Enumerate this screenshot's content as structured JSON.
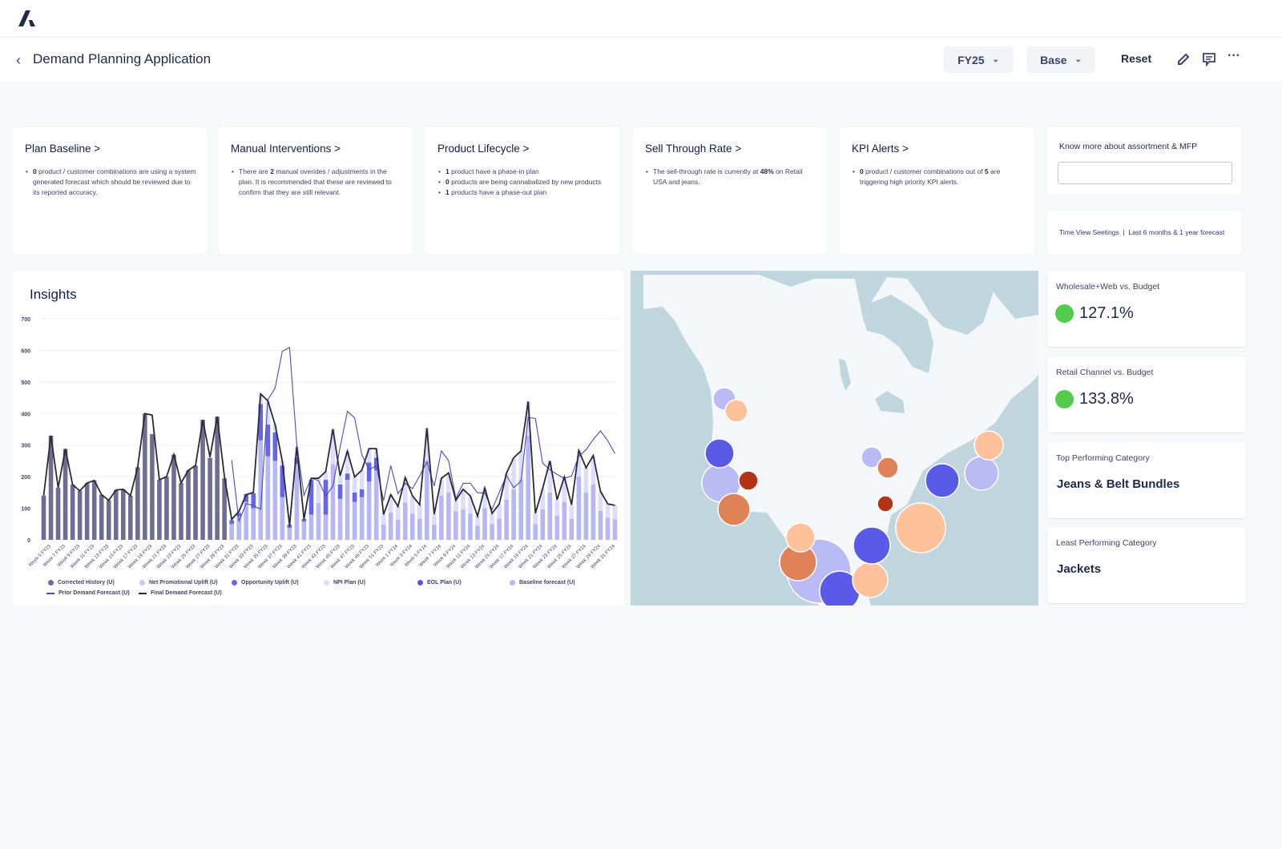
{
  "app": {
    "logo": "A",
    "title": "Demand Planning Application"
  },
  "toolbar": {
    "year": "FY25",
    "scenario": "Base",
    "reset": "Reset"
  },
  "cards": [
    {
      "title": "Plan Baseline >",
      "items": [
        {
          "b": "0",
          "t": " product / customer combinations are using a system generated forecast which should be reviewed due to its reported accuracy."
        }
      ]
    },
    {
      "title": "Manual Interventions >",
      "items": [
        {
          "pre": "There are ",
          "b": "2",
          "t": " manual overides / adjustments in the plan. It is recommended that these are reviewed to confirm that they are still relevant."
        }
      ]
    },
    {
      "title": "Product Lifecycle >",
      "items": [
        {
          "b": "1",
          "t": "  product  have a phase-in plan"
        },
        {
          "b": "0",
          "t": " products are being cannabalized by new products"
        },
        {
          "b": "1",
          "t": "  products have a phase-out plan"
        }
      ]
    },
    {
      "title": "Sell Through Rate >",
      "items": [
        {
          "pre": "The sell-through rate is currently at ",
          "b": "48%",
          "t": " on Retail USA and jeans."
        }
      ]
    },
    {
      "title": "KPI Alerts >",
      "items": [
        {
          "b": "0",
          "t": " product / customer combinations out of ",
          "b2": "5",
          "t2": " are triggering high priority KPI alerts."
        }
      ]
    }
  ],
  "assistant": {
    "label": "Know more about assortment & MFP",
    "placeholder": ""
  },
  "timeview": {
    "label": "Time View Seetings",
    "sep": "|",
    "value": "Last 6 months & 1 year forecast"
  },
  "kpis": [
    {
      "label": "Wholesale+Web vs. Budget",
      "value": "127.1%",
      "status_color": "#52cc4b"
    },
    {
      "label": "Retail Channel vs. Budget",
      "value": "133.8%",
      "status_color": "#52cc4b"
    },
    {
      "label": "Top Performing Category",
      "value": "Jeans & Belt Bundles"
    },
    {
      "label": "Least Performing Category",
      "value": "Jackets"
    }
  ],
  "insights": {
    "title": "Insights"
  },
  "chart_data": {
    "type": "bar",
    "stacked": true,
    "ylim": [
      0,
      700
    ],
    "yticks": [
      0,
      100,
      200,
      300,
      400,
      500,
      600,
      700
    ],
    "grid": true,
    "legend_placement": "bottom",
    "x_start": {
      "week": 4,
      "fy": "FY23"
    },
    "xticklabels": [
      "Week 5 FY23",
      "Week 7 FY23",
      "Week 9 FY23",
      "Week 11 FY23",
      "Week 13 FY23",
      "Week 15 FY23",
      "Week 17 FY23",
      "Week 19 FY23",
      "Week 21 FY23",
      "Week 23 FY23",
      "Week 25 FY23",
      "Week 27 FY23",
      "Week 29 FY23",
      "Week 31 FY23",
      "Week 33 FY23",
      "Week 35 FY23",
      "Week 37 FY23",
      "Week 39 FY23",
      "Week 41 FY23",
      "Week 43 FY23",
      "Week 45 FY23",
      "Week 47 FY23",
      "Week 49 FY23",
      "Week 51 FY23",
      "Week 1 FY24",
      "Week 3 FY24",
      "Week 5 FY24",
      "Week 7 FY24",
      "Week 9 FY24",
      "Week 11 FY24",
      "Week 13 FY24",
      "Week 15 FY24",
      "Week 17 FY24",
      "Week 19 FY24",
      "Week 21 FY24",
      "Week 23 FY24",
      "Week 25 FY24",
      "Week 27 FY24",
      "Week 29 FY24",
      "Week 31 FY24"
    ],
    "series": [
      {
        "name": "Corrected History (U)",
        "kind": "bar",
        "color": "#6e6e94",
        "values": [
          140,
          330,
          165,
          288,
          175,
          155,
          180,
          188,
          143,
          125,
          158,
          160,
          140,
          230,
          400,
          335,
          190,
          200,
          270,
          180,
          220,
          235,
          380,
          260,
          390,
          195,
          null,
          null,
          null,
          null,
          null,
          null,
          null,
          null,
          null,
          null,
          null,
          null,
          null,
          null,
          null,
          null,
          null,
          null,
          null,
          null,
          null,
          null,
          null,
          null,
          null,
          null,
          null,
          null,
          null,
          null,
          null,
          null,
          null,
          null,
          null,
          null,
          null,
          null,
          null,
          null,
          null,
          null,
          null,
          null,
          null,
          null,
          null,
          null,
          null,
          null,
          null,
          null,
          null,
          null
        ]
      },
      {
        "name": "Net Promotional Uplift (U)",
        "kind": "bar",
        "color": "#c6c6f7",
        "values": []
      },
      {
        "name": "Opportunity Uplift (U)",
        "kind": "bar",
        "color": "#6565ea",
        "values": [
          null,
          null,
          null,
          null,
          null,
          null,
          null,
          null,
          null,
          null,
          null,
          null,
          null,
          null,
          null,
          null,
          null,
          null,
          null,
          null,
          null,
          null,
          null,
          null,
          null,
          null,
          12,
          10,
          25,
          48,
          115,
          100,
          90,
          100,
          10,
          20,
          8,
          110,
          0,
          110,
          0,
          45,
          20,
          30,
          25,
          60,
          40,
          0,
          0,
          0,
          0,
          0,
          0,
          0,
          0,
          0,
          0,
          0,
          0,
          0,
          0,
          0,
          0,
          0,
          0,
          0,
          0,
          0,
          0,
          0,
          0,
          0,
          0,
          0,
          0,
          0,
          0,
          0,
          0,
          0
        ]
      },
      {
        "name": "NPI Plan (U)",
        "kind": "bar",
        "color": "#dcdcfb",
        "values": [
          null,
          null,
          null,
          null,
          null,
          null,
          null,
          null,
          null,
          null,
          null,
          null,
          null,
          null,
          null,
          null,
          null,
          null,
          null,
          null,
          null,
          null,
          null,
          null,
          null,
          null,
          3,
          5,
          0,
          2,
          32,
          75,
          25,
          15,
          0,
          35,
          0,
          5,
          78,
          26,
          111,
          28,
          71,
          49,
          61,
          44,
          29,
          32,
          57,
          42,
          79,
          56,
          44,
          104,
          32,
          55,
          62,
          35,
          64,
          56,
          30,
          64,
          34,
          45,
          84,
          100,
          91,
          108,
          34,
          65,
          100,
          51,
          79,
          44,
          83,
          78,
          92,
          62,
          44,
          44
        ]
      },
      {
        "name": "EOL Plan (U)",
        "kind": "bar",
        "color": "#5555e6",
        "values": []
      },
      {
        "name": "Baseline forecast (U)",
        "kind": "bar",
        "color": "#b7b7f5",
        "values": [
          null,
          null,
          null,
          null,
          null,
          null,
          null,
          null,
          null,
          null,
          null,
          null,
          null,
          null,
          null,
          null,
          null,
          null,
          null,
          null,
          null,
          null,
          null,
          null,
          null,
          null,
          50,
          75,
          120,
          100,
          315,
          265,
          250,
          135,
          38,
          240,
          58,
          80,
          117,
          80,
          240,
          130,
          190,
          120,
          135,
          185,
          220,
          48,
          86,
          64,
          118,
          83,
          67,
          250,
          49,
          140,
          150,
          90,
          96,
          83,
          45,
          100,
          50,
          68,
          127,
          160,
          190,
          330,
          50,
          97,
          150,
          76,
          120,
          67,
          200,
          150,
          175,
          92,
          70,
          65
        ]
      },
      {
        "name": "Prior Demand Forecast (U)",
        "kind": "line",
        "color": "#4b4bc0",
        "values": [
          null,
          null,
          null,
          null,
          null,
          null,
          null,
          null,
          null,
          null,
          null,
          null,
          null,
          null,
          null,
          null,
          null,
          null,
          null,
          null,
          null,
          null,
          null,
          null,
          null,
          null,
          252,
          58,
          115,
          108,
          97,
          444,
          480,
          597,
          609,
          302,
          141,
          195,
          188,
          138,
          171,
          294,
          407,
          386,
          269,
          222,
          235,
          124,
          235,
          146,
          179,
          162,
          203,
          247,
          170,
          282,
          250,
          131,
          179,
          179,
          149,
          149,
          96,
          150,
          204,
          165,
          186,
          388,
          384,
          243,
          222,
          207,
          195,
          202,
          265,
          285,
          318,
          345,
          314,
          273
        ]
      },
      {
        "name": "Final Demand Forecast (U)",
        "kind": "line",
        "color": "#2a2a33",
        "values": [
          140,
          330,
          165,
          288,
          175,
          155,
          180,
          188,
          143,
          125,
          158,
          160,
          140,
          230,
          400,
          395,
          190,
          200,
          270,
          180,
          220,
          235,
          380,
          262,
          390,
          200,
          65,
          90,
          143,
          150,
          462,
          440,
          365,
          250,
          45,
          295,
          65,
          195,
          195,
          216,
          351,
          203,
          281,
          199,
          221,
          289,
          289,
          80,
          143,
          106,
          197,
          139,
          111,
          354,
          81,
          195,
          212,
          125,
          160,
          139,
          75,
          164,
          84,
          113,
          211,
          260,
          281,
          438,
          84,
          162,
          250,
          127,
          199,
          111,
          283,
          228,
          267,
          154,
          114,
          109
        ]
      }
    ]
  },
  "map": {
    "water_color": "#bfd6de",
    "land_color": "#f3f7f9",
    "bubble_colors": {
      "lavender": "#babaf5",
      "peach": "#ffc19a",
      "blue": "#5a5ae8",
      "orange": "#e08258",
      "red": "#b33317"
    }
  }
}
